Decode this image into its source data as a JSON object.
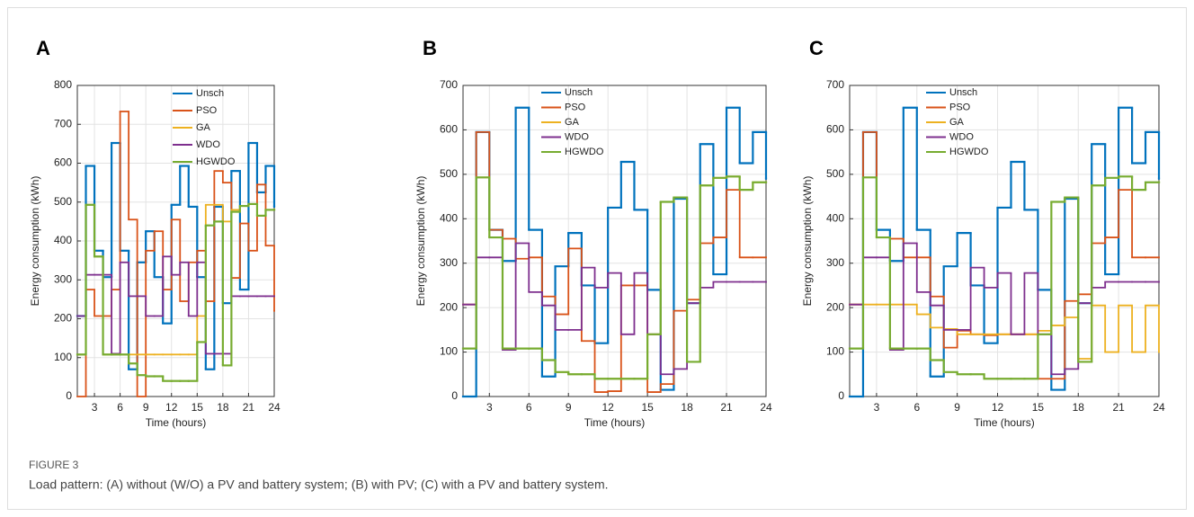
{
  "figure_label": "FIGURE 3",
  "caption": "Load pattern: (A) without (W/O) a PV and battery system; (B) with PV; (C) with a PV and battery system.",
  "chart_data": [
    {
      "type": "stairs",
      "panel_label": "A",
      "xlabel": "Time (hours)",
      "ylabel": "Energy consumption (kWh)",
      "grid": true,
      "legend": "north",
      "x": [
        1,
        2,
        3,
        4,
        5,
        6,
        7,
        8,
        9,
        10,
        11,
        12,
        13,
        14,
        15,
        16,
        17,
        18,
        19,
        20,
        21,
        22,
        23,
        24
      ],
      "xlim": [
        1,
        24
      ],
      "xticks": [
        3,
        6,
        9,
        12,
        15,
        18,
        21,
        24
      ],
      "ylim": [
        0,
        800
      ],
      "yticks": [
        0,
        100,
        200,
        300,
        400,
        500,
        600,
        700,
        800
      ],
      "series": [
        {
          "name": "Unsch",
          "color": "#0072BD",
          "values": [
            207,
            593,
            375,
            307,
            652,
            375,
            70,
            345,
            425,
            307,
            188,
            493,
            593,
            488,
            307,
            70,
            488,
            240,
            580,
            275,
            652,
            525,
            593,
            488
          ]
        },
        {
          "name": "PSO",
          "color": "#D95319",
          "values": [
            0,
            275,
            207,
            207,
            275,
            733,
            455,
            0,
            375,
            425,
            275,
            455,
            245,
            345,
            375,
            245,
            580,
            550,
            305,
            445,
            375,
            545,
            388,
            220
          ]
        },
        {
          "name": "GA",
          "color": "#EDB120",
          "values": [
            108,
            493,
            360,
            108,
            108,
            108,
            108,
            108,
            108,
            108,
            108,
            108,
            108,
            108,
            207,
            493,
            493,
            450,
            480,
            490,
            495,
            465,
            480,
            480
          ]
        },
        {
          "name": "WDO",
          "color": "#7E2F8E",
          "values": [
            207,
            313,
            313,
            313,
            110,
            345,
            258,
            258,
            207,
            207,
            360,
            313,
            345,
            207,
            345,
            110,
            110,
            110,
            258,
            258,
            258,
            258,
            258,
            258
          ]
        },
        {
          "name": "HGWDO",
          "color": "#77AC30",
          "values": [
            108,
            493,
            360,
            108,
            108,
            108,
            85,
            55,
            52,
            52,
            40,
            40,
            40,
            40,
            140,
            440,
            450,
            80,
            475,
            490,
            495,
            465,
            480,
            480
          ]
        }
      ]
    },
    {
      "type": "stairs",
      "panel_label": "B",
      "xlabel": "Time (hours)",
      "ylabel": "Energy consumption (kWh)",
      "grid": true,
      "legend": "north",
      "x": [
        1,
        2,
        3,
        4,
        5,
        6,
        7,
        8,
        9,
        10,
        11,
        12,
        13,
        14,
        15,
        16,
        17,
        18,
        19,
        20,
        21,
        22,
        23,
        24
      ],
      "xlim": [
        1,
        24
      ],
      "xticks": [
        3,
        6,
        9,
        12,
        15,
        18,
        21,
        24
      ],
      "ylim": [
        0,
        700
      ],
      "yticks": [
        0,
        100,
        200,
        300,
        400,
        500,
        600,
        700
      ],
      "series": [
        {
          "name": "Unsch",
          "color": "#0072BD",
          "values": [
            0,
            595,
            375,
            305,
            650,
            375,
            45,
            293,
            368,
            250,
            120,
            425,
            528,
            420,
            240,
            15,
            445,
            210,
            568,
            275,
            650,
            525,
            595,
            490
          ]
        },
        {
          "name": "PSO",
          "color": "#D95319",
          "values": [
            207,
            595,
            375,
            355,
            310,
            313,
            225,
            185,
            333,
            125,
            10,
            12,
            250,
            250,
            10,
            28,
            193,
            218,
            345,
            358,
            465,
            313,
            313,
            313
          ]
        },
        {
          "name": "GA",
          "color": "#EDB120",
          "values": [
            108,
            493,
            358,
            108,
            108,
            108,
            82,
            55,
            50,
            50,
            40,
            40,
            40,
            40,
            140,
            438,
            448,
            78,
            475,
            492,
            495,
            465,
            482,
            482
          ]
        },
        {
          "name": "WDO",
          "color": "#7E2F8E",
          "values": [
            207,
            313,
            313,
            105,
            345,
            235,
            205,
            150,
            150,
            290,
            245,
            278,
            140,
            278,
            140,
            50,
            62,
            210,
            245,
            258,
            258,
            258,
            258,
            258
          ]
        },
        {
          "name": "HGWDO",
          "color": "#77AC30",
          "values": [
            108,
            493,
            358,
            108,
            108,
            108,
            82,
            55,
            50,
            50,
            40,
            40,
            40,
            40,
            140,
            438,
            448,
            78,
            475,
            492,
            495,
            465,
            482,
            482
          ]
        }
      ]
    },
    {
      "type": "stairs",
      "panel_label": "C",
      "xlabel": "Time (hours)",
      "ylabel": "Energy consumption (kWh)",
      "grid": true,
      "legend": "north",
      "x": [
        1,
        2,
        3,
        4,
        5,
        6,
        7,
        8,
        9,
        10,
        11,
        12,
        13,
        14,
        15,
        16,
        17,
        18,
        19,
        20,
        21,
        22,
        23,
        24
      ],
      "xlim": [
        1,
        24
      ],
      "xticks": [
        3,
        6,
        9,
        12,
        15,
        18,
        21,
        24
      ],
      "ylim": [
        0,
        700
      ],
      "yticks": [
        0,
        100,
        200,
        300,
        400,
        500,
        600,
        700
      ],
      "series": [
        {
          "name": "Unsch",
          "color": "#0072BD",
          "values": [
            0,
            595,
            375,
            305,
            650,
            375,
            45,
            293,
            368,
            250,
            120,
            425,
            528,
            420,
            240,
            15,
            445,
            210,
            568,
            275,
            650,
            525,
            595,
            490
          ]
        },
        {
          "name": "PSO",
          "color": "#D95319",
          "values": [
            207,
            595,
            358,
            355,
            313,
            313,
            225,
            110,
            148,
            140,
            138,
            140,
            140,
            140,
            40,
            40,
            215,
            230,
            345,
            358,
            465,
            313,
            313,
            313
          ]
        },
        {
          "name": "GA",
          "color": "#EDB120",
          "values": [
            207,
            207,
            207,
            207,
            207,
            185,
            155,
            152,
            140,
            140,
            140,
            140,
            140,
            140,
            148,
            160,
            178,
            85,
            205,
            100,
            205,
            100,
            205,
            100
          ]
        },
        {
          "name": "WDO",
          "color": "#7E2F8E",
          "values": [
            207,
            313,
            313,
            105,
            345,
            235,
            205,
            150,
            150,
            290,
            245,
            278,
            140,
            278,
            140,
            50,
            62,
            210,
            245,
            258,
            258,
            258,
            258,
            258
          ]
        },
        {
          "name": "HGWDO",
          "color": "#77AC30",
          "values": [
            108,
            493,
            358,
            108,
            108,
            108,
            82,
            55,
            50,
            50,
            40,
            40,
            40,
            40,
            140,
            438,
            448,
            78,
            475,
            492,
            495,
            465,
            482,
            482
          ]
        }
      ]
    }
  ]
}
